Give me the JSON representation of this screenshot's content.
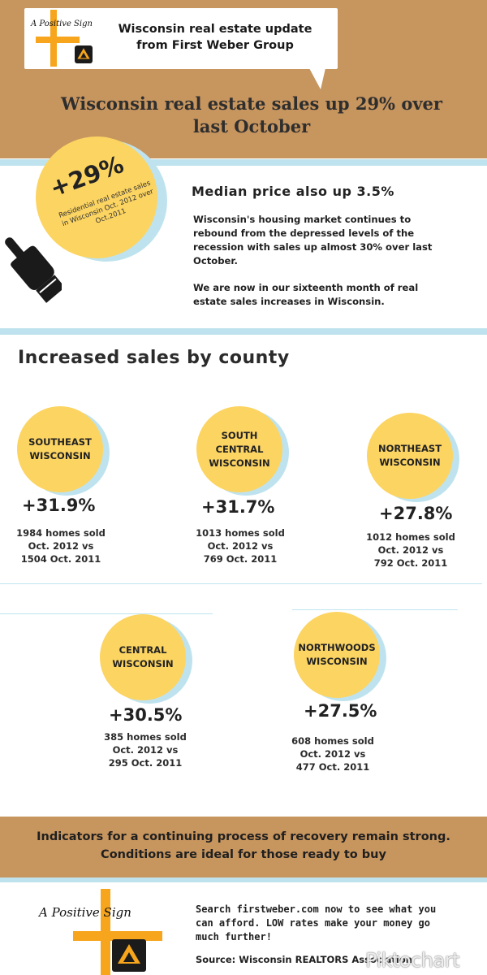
{
  "header": {
    "logo_text": "A Positive Sign",
    "callout_title": "Wisconsin real estate update from First Weber Group",
    "headline": "Wisconsin real estate sales up 29% over last October"
  },
  "intro": {
    "big_pct": "+29%",
    "big_sub": "Residential real estate sales in Wisconsin Oct. 2012 over Oct.2011",
    "median": "Median price also up 3.5%",
    "para1": "Wisconsin's housing market continues to rebound from the depressed levels of the recession with sales up almost 30% over last October.",
    "para2": "We are now in our sixteenth month of real estate sales increases in Wisconsin."
  },
  "counties": {
    "title": "Increased sales by county",
    "items": [
      {
        "name": "SOUTHEAST WISCONSIN",
        "pct": "+31.9%",
        "l1": "1984 homes sold",
        "l2": "Oct. 2012 vs",
        "l3": "1504 Oct. 2011"
      },
      {
        "name": "SOUTH CENTRAL WISCONSIN",
        "pct": "+31.7%",
        "l1": "1013 homes sold",
        "l2": "Oct. 2012 vs",
        "l3": "769 Oct. 2011"
      },
      {
        "name": "NORTHEAST WISCONSIN",
        "pct": "+27.8%",
        "l1": "1012 homes sold",
        "l2": "Oct. 2012 vs",
        "l3": "792 Oct. 2011"
      },
      {
        "name": "CENTRAL WISCONSIN",
        "pct": "+30.5%",
        "l1": "385 homes sold",
        "l2": "Oct. 2012 vs",
        "l3": "295 Oct. 2011"
      },
      {
        "name": "NORTHWOODS WISCONSIN",
        "pct": "+27.5%",
        "l1": "608 homes sold",
        "l2": "Oct. 2012 vs",
        "l3": "477 Oct. 2011"
      }
    ]
  },
  "footer": {
    "band_text": "Indicators for a continuing process of recovery remain strong. Conditions are ideal for those ready to buy",
    "logo_text": "A Positive Sign",
    "cta": "Search firstweber.com now to see what you can afford. LOW rates make your money go much further!",
    "source": "Source: Wisconsin REALTORS Association",
    "watermark": "Piktochart"
  },
  "colors": {
    "tan": "#c7955e",
    "yellow": "#fcd462",
    "light_blue": "#bfe3ee",
    "cross_orange": "#f7a51c"
  },
  "icons": [
    "pointing-hand-icon",
    "first-weber-badge-icon"
  ]
}
